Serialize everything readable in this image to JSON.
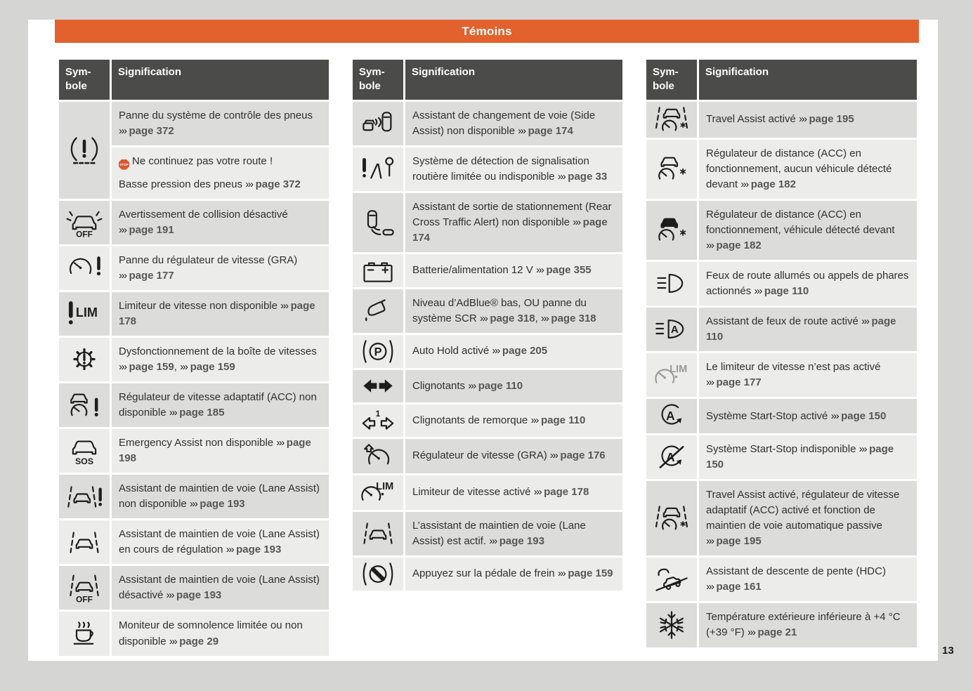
{
  "page": {
    "title": "Témoins",
    "number": "13"
  },
  "table_header": {
    "symbol": "Sym-bole",
    "meaning": "Signification"
  },
  "crossref_marker": "›››",
  "colors": {
    "accent_orange": "#e2612c",
    "header_gray": "#4b4b4a",
    "row_dark": "#dcdcdb",
    "row_light": "#ececeb",
    "stop_red": "#d9572e",
    "page_bg": "#d5d5d3"
  },
  "tables": [
    {
      "rows": [
        {
          "icon": {
            "name": "tire-pressure-warning-icon",
            "glyph": "tpms",
            "label": ""
          },
          "cells": [
            {
              "paras": [
                [
                  {
                    "t": "Panne du système de contrôle des pneus "
                  },
                  {
                    "ref": "page 372"
                  }
                ]
              ]
            },
            {
              "paras": [
                [
                  {
                    "stop": "STOP"
                  },
                  {
                    "t": "Ne continuez pas votre route !"
                  }
                ],
                [
                  {
                    "t": "Basse pression des pneus "
                  },
                  {
                    "ref": "page 372"
                  }
                ]
              ]
            }
          ]
        },
        {
          "icon": {
            "name": "collision-warning-off-icon",
            "glyph": "collision_off",
            "label": "OFF"
          },
          "cells": [
            {
              "paras": [
                [
                  {
                    "t": "Avertissement de collision désactivé "
                  },
                  {
                    "ref": "page 191"
                  }
                ]
              ]
            }
          ]
        },
        {
          "icon": {
            "name": "cruise-control-fault-icon",
            "glyph": "speedo_excl",
            "label": ""
          },
          "cells": [
            {
              "paras": [
                [
                  {
                    "t": "Panne du régulateur de vitesse (GRA) "
                  },
                  {
                    "ref": "page 177"
                  }
                ]
              ]
            }
          ]
        },
        {
          "icon": {
            "name": "speed-limiter-unavailable-icon",
            "glyph": "lim_unavail",
            "label": "LIM"
          },
          "cells": [
            {
              "paras": [
                [
                  {
                    "t": "Limiteur de vitesse non disponible "
                  },
                  {
                    "ref": "page 178"
                  }
                ]
              ]
            }
          ]
        },
        {
          "icon": {
            "name": "gearbox-malfunction-icon",
            "glyph": "gear_excl",
            "label": ""
          },
          "cells": [
            {
              "paras": [
                [
                  {
                    "t": "Dysfonctionnement de la boîte de vitesses "
                  },
                  {
                    "ref": "page 159"
                  },
                  {
                    "t": ", "
                  },
                  {
                    "ref": "page 159"
                  }
                ]
              ]
            }
          ]
        },
        {
          "icon": {
            "name": "acc-unavailable-icon",
            "glyph": "acc_excl",
            "label": ""
          },
          "cells": [
            {
              "paras": [
                [
                  {
                    "t": "Régulateur de vitesse adaptatif (ACC) non disponible "
                  },
                  {
                    "ref": "page 185"
                  }
                ]
              ]
            }
          ]
        },
        {
          "icon": {
            "name": "emergency-assist-icon",
            "glyph": "car_sos",
            "label": "SOS"
          },
          "cells": [
            {
              "paras": [
                [
                  {
                    "t": "Emergency Assist non disponible "
                  },
                  {
                    "ref": "page 198"
                  }
                ]
              ]
            }
          ]
        },
        {
          "icon": {
            "name": "lane-assist-unavailable-icon",
            "glyph": "lane_excl",
            "label": ""
          },
          "cells": [
            {
              "paras": [
                [
                  {
                    "t": "Assistant de maintien de voie (Lane Assist) non disponible "
                  },
                  {
                    "ref": "page 193"
                  }
                ]
              ]
            }
          ]
        },
        {
          "icon": {
            "name": "lane-assist-regulating-icon",
            "glyph": "lane",
            "label": ""
          },
          "cells": [
            {
              "paras": [
                [
                  {
                    "t": "Assistant de maintien de voie (Lane Assist) en cours de régulation "
                  },
                  {
                    "ref": "page 193"
                  }
                ]
              ]
            }
          ]
        },
        {
          "icon": {
            "name": "lane-assist-off-icon",
            "glyph": "lane_off",
            "label": "OFF"
          },
          "cells": [
            {
              "paras": [
                [
                  {
                    "t": "Assistant de maintien de voie (Lane Assist) désactivé "
                  },
                  {
                    "ref": "page 193"
                  }
                ]
              ]
            }
          ]
        },
        {
          "icon": {
            "name": "drowsiness-monitor-icon",
            "glyph": "cup",
            "label": ""
          },
          "cells": [
            {
              "paras": [
                [
                  {
                    "t": "Moniteur de somnolence limitée ou non disponible "
                  },
                  {
                    "ref": "page 29"
                  }
                ]
              ]
            }
          ]
        }
      ]
    },
    {
      "rows": [
        {
          "icon": {
            "name": "side-assist-icon",
            "glyph": "side_assist",
            "label": ""
          },
          "cells": [
            {
              "paras": [
                [
                  {
                    "t": "Assistant de changement de voie (Side Assist) non disponible "
                  },
                  {
                    "ref": "page 174"
                  }
                ]
              ]
            }
          ]
        },
        {
          "icon": {
            "name": "traffic-sign-recognition-icon",
            "glyph": "sign_detect",
            "label": ""
          },
          "cells": [
            {
              "paras": [
                [
                  {
                    "t": "Système de détection de signalisation routière limitée ou indisponible "
                  },
                  {
                    "ref": "page 33"
                  }
                ]
              ]
            }
          ]
        },
        {
          "icon": {
            "name": "rear-cross-traffic-icon",
            "glyph": "rear_cross",
            "label": ""
          },
          "cells": [
            {
              "paras": [
                [
                  {
                    "t": "Assistant de sortie de stationnement (Rear Cross Traffic Alert) non disponible "
                  },
                  {
                    "ref": "page 174"
                  }
                ]
              ]
            }
          ]
        },
        {
          "icon": {
            "name": "battery-icon",
            "glyph": "battery",
            "label": ""
          },
          "cells": [
            {
              "paras": [
                [
                  {
                    "t": "Batterie/alimentation 12 V "
                  },
                  {
                    "ref": "page 355"
                  }
                ]
              ]
            }
          ]
        },
        {
          "icon": {
            "name": "adblue-icon",
            "glyph": "adblue",
            "label": ""
          },
          "cells": [
            {
              "paras": [
                [
                  {
                    "t": "Niveau d’AdBlue® bas, OU panne du système SCR "
                  },
                  {
                    "ref": "page 318"
                  },
                  {
                    "t": ", "
                  },
                  {
                    "ref": "page 318"
                  }
                ]
              ]
            }
          ]
        },
        {
          "icon": {
            "name": "auto-hold-icon",
            "glyph": "autohold",
            "label": "P"
          },
          "cells": [
            {
              "paras": [
                [
                  {
                    "t": "Auto Hold activé "
                  },
                  {
                    "ref": "page 205"
                  }
                ]
              ]
            }
          ]
        },
        {
          "icon": {
            "name": "turn-signals-icon",
            "glyph": "arrows_solid",
            "label": ""
          },
          "cells": [
            {
              "paras": [
                [
                  {
                    "t": "Clignotants "
                  },
                  {
                    "ref": "page 110"
                  }
                ]
              ]
            }
          ]
        },
        {
          "icon": {
            "name": "trailer-turn-signals-icon",
            "glyph": "arrows_trailer",
            "label": "1"
          },
          "cells": [
            {
              "paras": [
                [
                  {
                    "t": "Clignotants de remorque "
                  },
                  {
                    "ref": "page 110"
                  }
                ]
              ]
            }
          ]
        },
        {
          "icon": {
            "name": "cruise-control-icon",
            "glyph": "speedo_arrow",
            "label": ""
          },
          "cells": [
            {
              "paras": [
                [
                  {
                    "t": "Régulateur de vitesse (GRA) "
                  },
                  {
                    "ref": "page 176"
                  }
                ]
              ]
            }
          ]
        },
        {
          "icon": {
            "name": "speed-limiter-active-icon",
            "glyph": "lim_speedo",
            "label": "LIM"
          },
          "cells": [
            {
              "paras": [
                [
                  {
                    "t": "Limiteur de vitesse activé "
                  },
                  {
                    "ref": "page 178"
                  }
                ]
              ]
            }
          ]
        },
        {
          "icon": {
            "name": "lane-assist-active-icon",
            "glyph": "lane",
            "label": ""
          },
          "cells": [
            {
              "paras": [
                [
                  {
                    "t": "L’assistant de maintien de voie (Lane Assist) est actif. "
                  },
                  {
                    "ref": "page 193"
                  }
                ]
              ]
            }
          ]
        },
        {
          "icon": {
            "name": "brake-pedal-icon",
            "glyph": "brake_pedal",
            "label": ""
          },
          "cells": [
            {
              "paras": [
                [
                  {
                    "t": "Appuyez sur la pédale de frein "
                  },
                  {
                    "ref": "page 159"
                  }
                ]
              ]
            }
          ]
        }
      ]
    },
    {
      "rows": [
        {
          "icon": {
            "name": "travel-assist-icon",
            "glyph": "travel_assist",
            "label": ""
          },
          "cells": [
            {
              "paras": [
                [
                  {
                    "t": "Travel Assist activé "
                  },
                  {
                    "ref": "page 195"
                  }
                ]
              ]
            }
          ]
        },
        {
          "icon": {
            "name": "acc-active-icon",
            "glyph": "acc_gauge",
            "label": ""
          },
          "cells": [
            {
              "paras": [
                [
                  {
                    "t": "Régulateur de distance (ACC) en fonctionnement, aucun véhicule détecté devant "
                  },
                  {
                    "ref": "page 182"
                  }
                ]
              ]
            }
          ]
        },
        {
          "icon": {
            "name": "acc-vehicle-detected-icon",
            "glyph": "acc_gauge_solid",
            "label": ""
          },
          "cells": [
            {
              "paras": [
                [
                  {
                    "t": "Régulateur de distance (ACC) en fonctionnement, véhicule détecté devant "
                  },
                  {
                    "ref": "page 182"
                  }
                ]
              ]
            }
          ]
        },
        {
          "icon": {
            "name": "high-beam-icon",
            "glyph": "beam_high",
            "label": ""
          },
          "cells": [
            {
              "paras": [
                [
                  {
                    "t": "Feux de route allumés ou appels de phares actionnés "
                  },
                  {
                    "ref": "page 110"
                  }
                ]
              ]
            }
          ]
        },
        {
          "icon": {
            "name": "high-beam-assist-icon",
            "glyph": "beam_auto",
            "label": "A"
          },
          "cells": [
            {
              "paras": [
                [
                  {
                    "t": "Assistant de feux de route activé "
                  },
                  {
                    "ref": "page 110"
                  }
                ]
              ]
            }
          ]
        },
        {
          "icon": {
            "name": "speed-limiter-inactive-icon",
            "glyph": "lim_gray",
            "label": "LIM"
          },
          "cells": [
            {
              "paras": [
                [
                  {
                    "t": "Le limiteur de vitesse n’est pas activé "
                  },
                  {
                    "ref": "page 177"
                  }
                ]
              ]
            }
          ]
        },
        {
          "icon": {
            "name": "start-stop-active-icon",
            "glyph": "startstop",
            "label": "A"
          },
          "cells": [
            {
              "paras": [
                [
                  {
                    "t": "Système Start-Stop activé "
                  },
                  {
                    "ref": "page 150"
                  }
                ]
              ]
            }
          ]
        },
        {
          "icon": {
            "name": "start-stop-unavailable-icon",
            "glyph": "startstop_off",
            "label": "A"
          },
          "cells": [
            {
              "paras": [
                [
                  {
                    "t": "Système Start-Stop indisponible "
                  },
                  {
                    "ref": "page 150"
                  }
                ]
              ]
            }
          ]
        },
        {
          "icon": {
            "name": "travel-assist-full-icon",
            "glyph": "travel_assist",
            "label": ""
          },
          "cells": [
            {
              "paras": [
                [
                  {
                    "t": "Travel Assist activé, régulateur de vitesse adaptatif (ACC) activé et fonction de maintien de voie automatique passive "
                  },
                  {
                    "ref": "page 195"
                  }
                ]
              ]
            }
          ]
        },
        {
          "icon": {
            "name": "hill-descent-control-icon",
            "glyph": "hdc",
            "label": ""
          },
          "cells": [
            {
              "paras": [
                [
                  {
                    "t": "Assistant de descente de pente (HDC) "
                  },
                  {
                    "ref": "page 161"
                  }
                ]
              ]
            }
          ]
        },
        {
          "icon": {
            "name": "low-temperature-icon",
            "glyph": "snow",
            "label": ""
          },
          "cells": [
            {
              "paras": [
                [
                  {
                    "t": "Température extérieure inférieure à +4 °C (+39 °F) "
                  },
                  {
                    "ref": "page 21"
                  }
                ]
              ]
            }
          ]
        }
      ]
    }
  ]
}
